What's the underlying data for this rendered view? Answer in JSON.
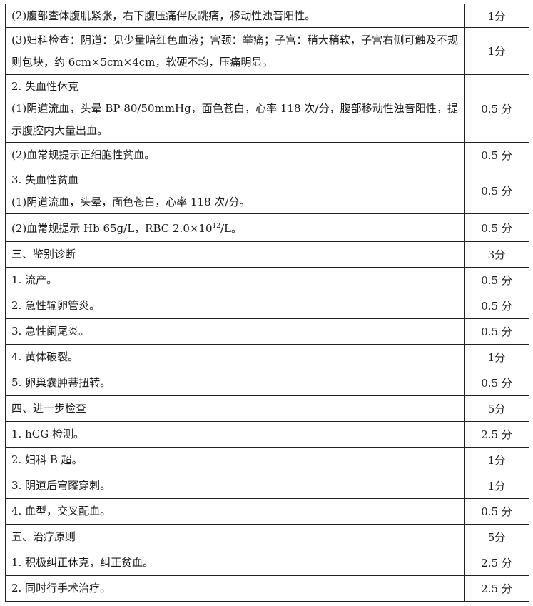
{
  "rows": [
    {
      "lines": [
        "(2)腹部查体腹肌紧张，右下腹压痛伴反跳痛，移动性浊音阳性。"
      ],
      "score": "1分"
    },
    {
      "lines": [
        "(3)妇科检查：阴道：见少量暗红色血液；宫颈：举痛；子宫：稍大稍软，子宫右侧可触及不规则包块，约 6cm×5cm×4cm，软硬不均，压痛明显。"
      ],
      "score": "1分"
    },
    {
      "lines": [
        "2. 失血性休克",
        "(1)阴道流血，头晕 BP 80/50mmHg，面色苍白，心率 118 次/分，腹部移动性浊音阳性，提示腹腔内大量出血。"
      ],
      "score": "0.5 分"
    },
    {
      "lines": [
        "(2)血常规提示正细胞性贫血。"
      ],
      "score": "0.5 分"
    },
    {
      "lines": [
        "3. 失血性贫血",
        "(1)阴道流血，头晕，面色苍白，心率 118 次/分。"
      ],
      "score": "0.5 分"
    },
    {
      "lines_pre": "(2)血常规提示 Hb 65g/L，RBC 2.0×10",
      "sup": "12",
      "lines_post": "/L。",
      "score": "0.5 分"
    },
    {
      "lines": [
        "三、鉴别诊断"
      ],
      "score": "3分"
    },
    {
      "lines": [
        "1. 流产。"
      ],
      "score": "0.5 分"
    },
    {
      "lines": [
        "2. 急性输卵管炎。"
      ],
      "score": "0.5 分"
    },
    {
      "lines": [
        "3. 急性阑尾炎。"
      ],
      "score": "0.5 分"
    },
    {
      "lines": [
        "4. 黄体破裂。"
      ],
      "score": "1分"
    },
    {
      "lines": [
        "5. 卵巢囊肿蒂扭转。"
      ],
      "score": "0.5 分"
    },
    {
      "lines": [
        "四、进一步检查"
      ],
      "score": "5分"
    },
    {
      "lines": [
        "1. hCG 检测。"
      ],
      "score": "2.5 分"
    },
    {
      "lines": [
        "2. 妇科 B 超。"
      ],
      "score": "1分"
    },
    {
      "lines": [
        "3. 阴道后穹窿穿刺。"
      ],
      "score": "1分"
    },
    {
      "lines": [
        "4. 血型，交叉配血。"
      ],
      "score": "0.5 分"
    },
    {
      "lines": [
        "五、治疗原则"
      ],
      "score": "5分"
    },
    {
      "lines": [
        "1. 积极纠正休克，纠正贫血。"
      ],
      "score": "2.5 分"
    },
    {
      "lines": [
        "2. 同时行手术治疗。"
      ],
      "score": "2.5 分"
    }
  ]
}
